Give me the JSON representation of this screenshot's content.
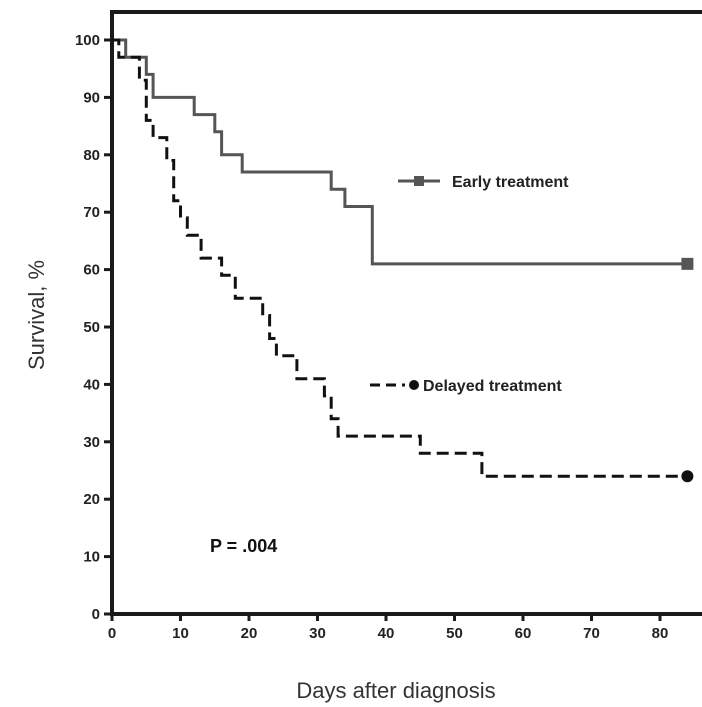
{
  "chart_data": {
    "type": "line",
    "subtype": "kaplan-meier step",
    "xlabel": "Days after diagnosis",
    "ylabel": "Survival, %",
    "xlim": [
      0,
      85
    ],
    "ylim": [
      0,
      100
    ],
    "xticks": [
      0,
      10,
      20,
      30,
      40,
      50,
      60,
      70,
      80
    ],
    "xtick_labels": [
      "0",
      "10",
      "20",
      "30",
      "40",
      "50",
      "60",
      "70",
      "80"
    ],
    "yticks": [
      0,
      10,
      20,
      30,
      40,
      50,
      60,
      70,
      80,
      90,
      100
    ],
    "ytick_labels": [
      "0",
      "10",
      "20",
      "30",
      "40",
      "50",
      "60",
      "70",
      "80",
      "90",
      "100"
    ],
    "grid": false,
    "annotation": "P = .004",
    "series": [
      {
        "name": "Early treatment",
        "color": "#555555",
        "line_style": "solid",
        "end_marker": "square",
        "points": [
          [
            0,
            100
          ],
          [
            2,
            100
          ],
          [
            2,
            97
          ],
          [
            5,
            97
          ],
          [
            5,
            94
          ],
          [
            6,
            94
          ],
          [
            6,
            90
          ],
          [
            12,
            90
          ],
          [
            12,
            87
          ],
          [
            15,
            87
          ],
          [
            15,
            84
          ],
          [
            16,
            84
          ],
          [
            16,
            80
          ],
          [
            19,
            80
          ],
          [
            19,
            77
          ],
          [
            32,
            77
          ],
          [
            32,
            74
          ],
          [
            34,
            74
          ],
          [
            34,
            71
          ],
          [
            38,
            71
          ],
          [
            38,
            61
          ],
          [
            84,
            61
          ]
        ]
      },
      {
        "name": "Delayed treatment",
        "color": "#111111",
        "line_style": "dashed",
        "end_marker": "circle",
        "points": [
          [
            0,
            100
          ],
          [
            1,
            100
          ],
          [
            1,
            97
          ],
          [
            4,
            97
          ],
          [
            4,
            93
          ],
          [
            5,
            93
          ],
          [
            5,
            86
          ],
          [
            6,
            86
          ],
          [
            6,
            83
          ],
          [
            8,
            83
          ],
          [
            8,
            79
          ],
          [
            9,
            79
          ],
          [
            9,
            72
          ],
          [
            10,
            72
          ],
          [
            10,
            69
          ],
          [
            11,
            69
          ],
          [
            11,
            66
          ],
          [
            13,
            66
          ],
          [
            13,
            62
          ],
          [
            16,
            62
          ],
          [
            16,
            59
          ],
          [
            18,
            59
          ],
          [
            18,
            55
          ],
          [
            22,
            55
          ],
          [
            22,
            52
          ],
          [
            23,
            52
          ],
          [
            23,
            48
          ],
          [
            24,
            48
          ],
          [
            24,
            45
          ],
          [
            27,
            45
          ],
          [
            27,
            41
          ],
          [
            31,
            41
          ],
          [
            31,
            38
          ],
          [
            32,
            38
          ],
          [
            32,
            34
          ],
          [
            33,
            34
          ],
          [
            33,
            31
          ],
          [
            45,
            31
          ],
          [
            45,
            28
          ],
          [
            54,
            28
          ],
          [
            54,
            24
          ],
          [
            84,
            24
          ]
        ]
      }
    ]
  }
}
